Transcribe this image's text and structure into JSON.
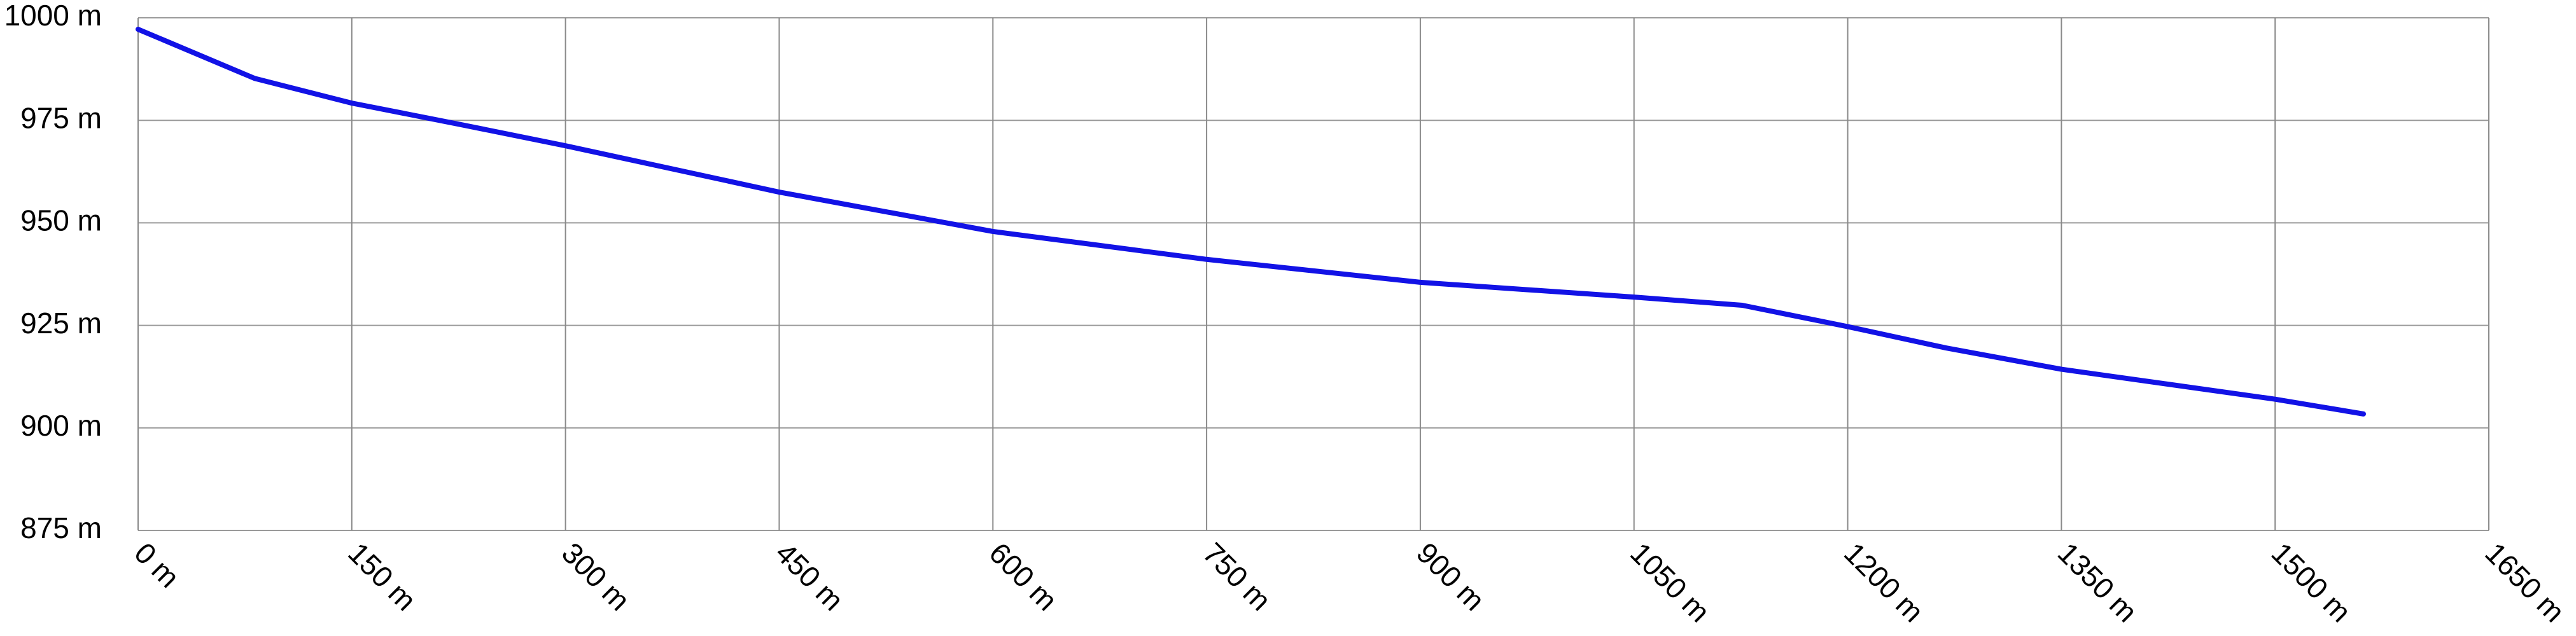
{
  "chart_data": {
    "type": "line",
    "x": [
      0,
      82,
      150,
      226,
      300,
      450,
      600,
      750,
      900,
      1050,
      1126,
      1200,
      1269,
      1350,
      1500,
      1562
    ],
    "series": [
      {
        "color": "#1212e6",
        "values": [
          997.2,
          985.2,
          979.2,
          974,
          968.8,
          957.5,
          947.9,
          941.1,
          935.5,
          931.9,
          929.9,
          924.7,
          919.5,
          914.3,
          907,
          903.4
        ]
      }
    ],
    "xlim": [
      0,
      1650
    ],
    "ylim": [
      875,
      1000
    ],
    "xticks": [
      {
        "value": 0,
        "label": "0 m"
      },
      {
        "value": 150,
        "label": "150 m"
      },
      {
        "value": 300,
        "label": "300 m"
      },
      {
        "value": 450,
        "label": "450 m"
      },
      {
        "value": 600,
        "label": "600 m"
      },
      {
        "value": 750,
        "label": "750 m"
      },
      {
        "value": 900,
        "label": "900 m"
      },
      {
        "value": 1050,
        "label": "1050 m"
      },
      {
        "value": 1200,
        "label": "1200 m"
      },
      {
        "value": 1350,
        "label": "1350 m"
      },
      {
        "value": 1500,
        "label": "1500 m"
      },
      {
        "value": 1650,
        "label": "1650 m"
      }
    ],
    "yticks": [
      {
        "value": 875,
        "label": "875 m"
      },
      {
        "value": 900,
        "label": "900 m"
      },
      {
        "value": 925,
        "label": "925 m"
      },
      {
        "value": 950,
        "label": "950 m"
      },
      {
        "value": 975,
        "label": "975 m"
      },
      {
        "value": 1000,
        "label": "1000 m"
      }
    ],
    "grid": true
  }
}
